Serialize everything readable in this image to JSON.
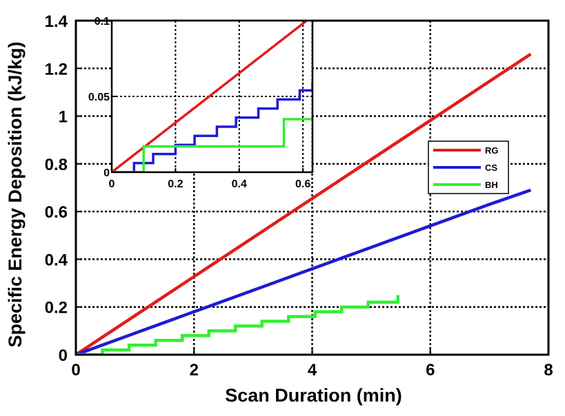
{
  "chart_data": [
    {
      "type": "line",
      "title": "",
      "xlabel": "Scan Duration (min)",
      "ylabel": "Specific Energy Deposition (kJ/kg)",
      "xlim": [
        0,
        8
      ],
      "ylim": [
        0,
        1.4
      ],
      "xticks": [
        0,
        2,
        4,
        6,
        8
      ],
      "xtick_labels": [
        "0",
        "2",
        "4",
        "6",
        "8"
      ],
      "yticks": [
        0,
        0.2,
        0.4,
        0.6,
        0.8,
        1,
        1.2,
        1.4
      ],
      "ytick_labels": [
        "0",
        "0.2",
        "0.4",
        "0.6",
        "0.8",
        "1",
        "1.2",
        "1.4"
      ],
      "grid": true,
      "legend_position": "center-right",
      "series": [
        {
          "name": "RG",
          "color": "#e31b1b",
          "x": [
            0,
            7.7
          ],
          "y": [
            0,
            1.26
          ]
        },
        {
          "name": "CS",
          "color": "#1c1cd6",
          "x": [
            0,
            1,
            2,
            3,
            4,
            5,
            6,
            7,
            7.7
          ],
          "y": [
            0,
            0.09,
            0.18,
            0.27,
            0.36,
            0.45,
            0.54,
            0.63,
            0.69
          ]
        },
        {
          "name": "BH",
          "color": "#33ee33",
          "step": true,
          "x": [
            0,
            0.45,
            0.9,
            1.35,
            1.8,
            2.25,
            2.7,
            3.15,
            3.6,
            4.05,
            4.5,
            4.95,
            5.45
          ],
          "y": [
            0,
            0.02,
            0.04,
            0.06,
            0.08,
            0.1,
            0.12,
            0.14,
            0.16,
            0.18,
            0.2,
            0.22,
            0.25
          ]
        }
      ]
    },
    {
      "type": "line",
      "title": "",
      "xlabel": "",
      "ylabel": "",
      "xlim": [
        0,
        0.63
      ],
      "ylim": [
        0,
        0.1
      ],
      "xticks": [
        0,
        0.2,
        0.4,
        0.6
      ],
      "xtick_labels": [
        "0",
        "0.2",
        "0.4",
        "0.6"
      ],
      "yticks": [
        0,
        0.05,
        0.1
      ],
      "ytick_labels": [
        "0",
        "0.05",
        "0.1"
      ],
      "grid": true,
      "series": [
        {
          "name": "RG",
          "color": "#e31b1b",
          "x": [
            0,
            0.63
          ],
          "y": [
            0,
            0.103
          ]
        },
        {
          "name": "CS",
          "color": "#1c1cd6",
          "step": true,
          "x": [
            0,
            0.07,
            0.13,
            0.2,
            0.26,
            0.33,
            0.39,
            0.46,
            0.52,
            0.59,
            0.63
          ],
          "y": [
            0,
            0.006,
            0.012,
            0.018,
            0.024,
            0.03,
            0.036,
            0.042,
            0.048,
            0.054,
            0.06
          ]
        },
        {
          "name": "BH",
          "color": "#33ee33",
          "step": true,
          "x": [
            0,
            0.1,
            0.44,
            0.54,
            0.63
          ],
          "y": [
            0,
            0.017,
            0.017,
            0.035,
            0.035
          ]
        }
      ]
    }
  ]
}
